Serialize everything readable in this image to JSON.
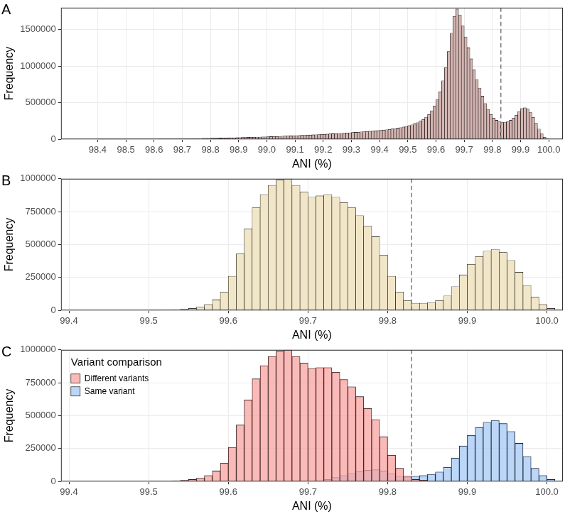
{
  "chart_data": [
    {
      "type": "histogram",
      "title": "A",
      "x_label": "ANI (%)",
      "y_label": "Frequency",
      "color": "#d4b5b2",
      "grid": true,
      "reference_line": 99.83,
      "xlim": [
        98.27,
        100.05
      ],
      "xticks": [
        98.4,
        98.5,
        98.6,
        98.7,
        98.8,
        98.9,
        {
          "value": 99,
          "label": "99.0"
        },
        99.1,
        99.2,
        99.3,
        99.4,
        99.5,
        99.6,
        99.7,
        99.8,
        99.9,
        {
          "value": 100,
          "label": "100.0"
        }
      ],
      "ylim": [
        0,
        1800000
      ],
      "yticks": [
        0,
        500000,
        1000000,
        1500000
      ],
      "bins": [
        98.4,
        98.41,
        98.42,
        98.43,
        98.44,
        98.45,
        98.46,
        98.47,
        98.48,
        98.49,
        98.5,
        98.51,
        98.52,
        98.53,
        98.54,
        98.55,
        98.56,
        98.57,
        98.58,
        98.59,
        98.6,
        98.61,
        98.62,
        98.63,
        98.64,
        98.65,
        98.66,
        98.67,
        98.68,
        98.69,
        98.7,
        98.71,
        98.72,
        98.73,
        98.74,
        98.75,
        98.76,
        98.77,
        98.78,
        98.79,
        98.8,
        98.81,
        98.82,
        98.83,
        98.84,
        98.85,
        98.86,
        98.87,
        98.88,
        98.89,
        98.9,
        98.91,
        98.92,
        98.93,
        98.94,
        98.95,
        98.96,
        98.97,
        98.98,
        98.99,
        99,
        99.01,
        99.02,
        99.03,
        99.04,
        99.05,
        99.06,
        99.07,
        99.08,
        99.09,
        99.1,
        99.11,
        99.12,
        99.13,
        99.14,
        99.15,
        99.16,
        99.17,
        99.18,
        99.19,
        99.2,
        99.21,
        99.22,
        99.23,
        99.24,
        99.25,
        99.26,
        99.27,
        99.28,
        99.29,
        99.3,
        99.31,
        99.32,
        99.33,
        99.34,
        99.35,
        99.36,
        99.37,
        99.38,
        99.39,
        99.4,
        99.41,
        99.42,
        99.43,
        99.44,
        99.45,
        99.46,
        99.47,
        99.48,
        99.49,
        99.5,
        99.51,
        99.52,
        99.53,
        99.54,
        99.55,
        99.56,
        99.57,
        99.58,
        99.59,
        99.6,
        99.61,
        99.62,
        99.63,
        99.64,
        99.65,
        99.66,
        99.67,
        99.68,
        99.69,
        99.7,
        99.71,
        99.72,
        99.73,
        99.74,
        99.75,
        99.76,
        99.77,
        99.78,
        99.79,
        99.8,
        99.81,
        99.82,
        99.83,
        99.84,
        99.85,
        99.86,
        99.87,
        99.88,
        99.89,
        99.9,
        99.91,
        99.92,
        99.93,
        99.94,
        99.95,
        99.96,
        99.97,
        99.98,
        99.99,
        100
      ],
      "values": [
        500,
        600,
        700,
        800,
        900,
        1000,
        1100,
        1200,
        1300,
        1500,
        1700,
        1900,
        2100,
        2300,
        2500,
        2700,
        3000,
        3300,
        3600,
        3900,
        4200,
        4500,
        4900,
        5300,
        5700,
        6100,
        6500,
        7000,
        7500,
        8000,
        8500,
        9000,
        9600,
        10200,
        10800,
        11400,
        12000,
        12700,
        13400,
        14100,
        14800,
        15600,
        16400,
        17200,
        18000,
        18900,
        19800,
        20700,
        21600,
        22600,
        23600,
        24600,
        25700,
        26800,
        27900,
        29000,
        30200,
        31400,
        32600,
        33900,
        35200,
        36500,
        37900,
        39300,
        40700,
        42200,
        43700,
        45200,
        46800,
        48400,
        50000,
        51700,
        53400,
        55200,
        57000,
        58800,
        60700,
        62600,
        64600,
        66600,
        68700,
        70800,
        73000,
        75200,
        77500,
        79800,
        82200,
        84600,
        87100,
        89700,
        92300,
        95000,
        97800,
        100600,
        103500,
        106500,
        109600,
        112800,
        116000,
        119400,
        123000,
        127000,
        131000,
        136000,
        141000,
        147000,
        153000,
        160000,
        168000,
        177000,
        187000,
        198000,
        212000,
        228000,
        248000,
        272000,
        302000,
        340000,
        390000,
        455000,
        540000,
        650000,
        800000,
        980000,
        1200000,
        1450000,
        1680000,
        1780000,
        1700000,
        1550000,
        1400000,
        1250000,
        1100000,
        950000,
        820000,
        700000,
        590000,
        490000,
        410000,
        340000,
        290000,
        260000,
        240000,
        230000,
        235000,
        245000,
        260000,
        290000,
        330000,
        380000,
        420000,
        430000,
        415000,
        370000,
        300000,
        220000,
        140000,
        75000,
        30000,
        8000
      ]
    },
    {
      "type": "histogram",
      "title": "B",
      "x_label": "ANI (%)",
      "y_label": "Frequency",
      "color": "#f1e6c8",
      "grid": true,
      "reference_line": 99.83,
      "xlim": [
        99.39,
        100.02
      ],
      "xticks": [
        99.4,
        99.5,
        99.6,
        99.7,
        99.8,
        99.9,
        {
          "value": 100,
          "label": "100.0"
        }
      ],
      "ylim": [
        0,
        1000000
      ],
      "yticks": [
        0,
        250000,
        500000,
        750000,
        1000000
      ],
      "bins": [
        99.5,
        99.51,
        99.52,
        99.53,
        99.54,
        99.55,
        99.56,
        99.57,
        99.58,
        99.59,
        99.6,
        99.61,
        99.62,
        99.63,
        99.64,
        99.65,
        99.66,
        99.67,
        99.68,
        99.69,
        99.7,
        99.71,
        99.72,
        99.73,
        99.74,
        99.75,
        99.76,
        99.77,
        99.78,
        99.79,
        99.8,
        99.81,
        99.82,
        99.83,
        99.84,
        99.85,
        99.86,
        99.87,
        99.88,
        99.89,
        99.9,
        99.91,
        99.92,
        99.93,
        99.94,
        99.95,
        99.96,
        99.97,
        99.98,
        99.99,
        100,
        100.01,
        100.02
      ],
      "values": [
        2000,
        3000,
        4000,
        6000,
        9000,
        15000,
        25000,
        45000,
        80000,
        140000,
        260000,
        430000,
        620000,
        780000,
        880000,
        950000,
        990000,
        1000000,
        950000,
        900000,
        860000,
        870000,
        880000,
        860000,
        820000,
        780000,
        720000,
        640000,
        560000,
        420000,
        260000,
        140000,
        75000,
        55000,
        55000,
        60000,
        75000,
        110000,
        180000,
        270000,
        350000,
        410000,
        450000,
        465000,
        440000,
        380000,
        290000,
        190000,
        100000,
        45000,
        15000,
        3000
      ]
    },
    {
      "type": "histogram",
      "title": "C",
      "x_label": "ANI (%)",
      "y_label": "Frequency",
      "grid": true,
      "reference_line": 99.83,
      "legend": "top-left",
      "legend_title": "Variant comparison",
      "xlim": [
        99.39,
        100.02
      ],
      "xticks": [
        99.4,
        99.5,
        99.6,
        99.7,
        99.8,
        99.9,
        {
          "value": 100,
          "label": "100.0"
        }
      ],
      "ylim": [
        0,
        1000000
      ],
      "yticks": [
        0,
        250000,
        500000,
        750000,
        1000000
      ],
      "bins": [
        99.5,
        99.51,
        99.52,
        99.53,
        99.54,
        99.55,
        99.56,
        99.57,
        99.58,
        99.59,
        99.6,
        99.61,
        99.62,
        99.63,
        99.64,
        99.65,
        99.66,
        99.67,
        99.68,
        99.69,
        99.7,
        99.71,
        99.72,
        99.73,
        99.74,
        99.75,
        99.76,
        99.77,
        99.78,
        99.79,
        99.8,
        99.81,
        99.82,
        99.83,
        99.84,
        99.85,
        99.86,
        99.87,
        99.88,
        99.89,
        99.9,
        99.91,
        99.92,
        99.93,
        99.94,
        99.95,
        99.96,
        99.97,
        99.98,
        99.99,
        100,
        100.01,
        100.02
      ],
      "series": [
        {
          "name": "Different variants",
          "color": "#f8a3a0",
          "values": [
            2000,
            3000,
            4000,
            6000,
            9000,
            15000,
            25000,
            45000,
            80000,
            140000,
            260000,
            430000,
            620000,
            780000,
            880000,
            950000,
            990000,
            1000000,
            950000,
            900000,
            860000,
            865000,
            865000,
            830000,
            775000,
            720000,
            645000,
            555000,
            470000,
            340000,
            200000,
            100000,
            40000,
            15000,
            10000,
            5000,
            3000,
            2000,
            2000,
            0,
            0,
            0,
            0,
            0,
            0,
            0,
            0,
            0,
            0,
            0,
            0,
            0
          ]
        },
        {
          "name": "Same variant",
          "color": "#a6c8f5",
          "values": [
            0,
            0,
            0,
            0,
            0,
            0,
            0,
            0,
            0,
            0,
            0,
            0,
            0,
            0,
            0,
            0,
            0,
            0,
            0,
            0,
            0,
            5000,
            15000,
            30000,
            45000,
            60000,
            75000,
            85000,
            90000,
            80000,
            60000,
            40000,
            35000,
            40000,
            45000,
            55000,
            72000,
            108000,
            178000,
            270000,
            350000,
            410000,
            450000,
            465000,
            440000,
            380000,
            290000,
            190000,
            100000,
            45000,
            15000,
            3000
          ]
        }
      ]
    }
  ]
}
